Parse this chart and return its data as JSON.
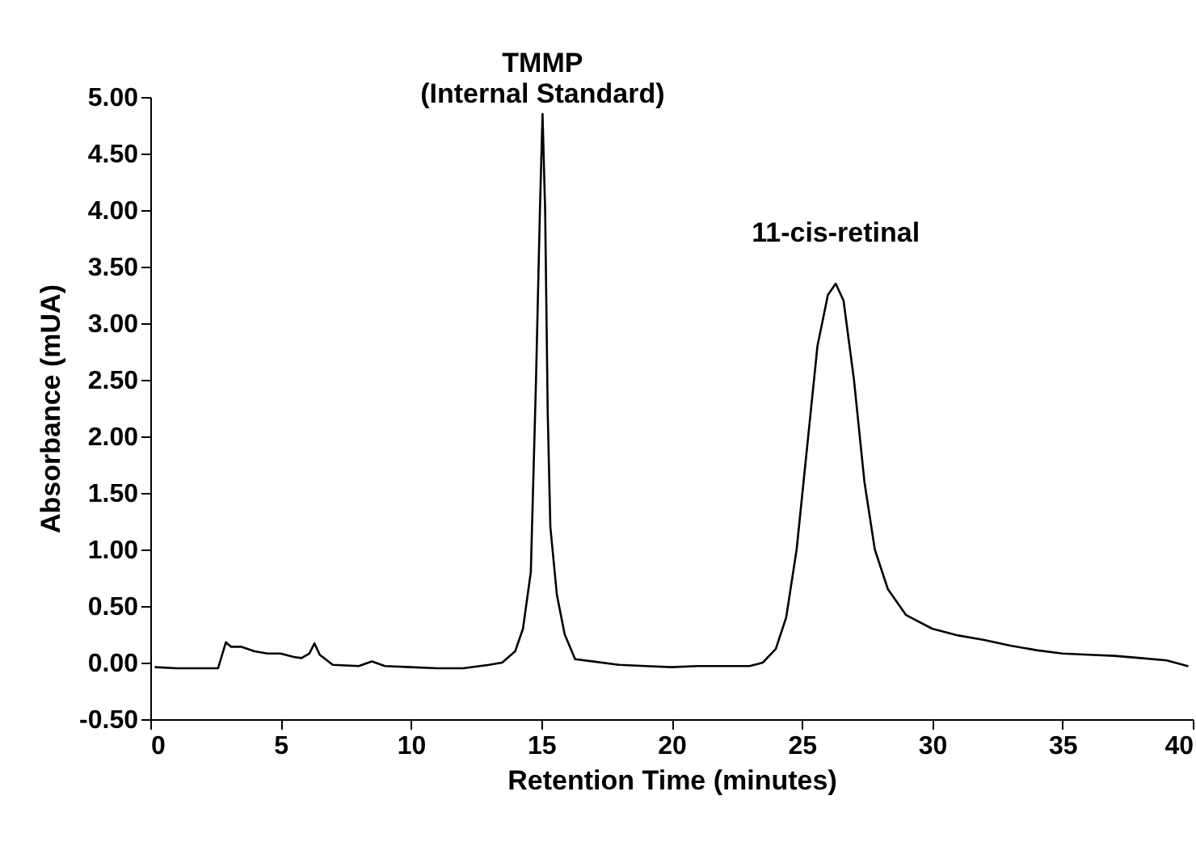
{
  "chart_data": {
    "type": "line",
    "xlabel": "Retention Time (minutes)",
    "ylabel": "Absorbance (mUA)",
    "xlim": [
      0,
      40
    ],
    "xticks": [
      0,
      5,
      10,
      15,
      20,
      25,
      30,
      35,
      40
    ],
    "ylim": [
      -0.5,
      5.0
    ],
    "yticks": [
      {
        "value": -0.5,
        "label": "-0.50"
      },
      {
        "value": 0,
        "label": "0.00"
      },
      {
        "value": 0.5,
        "label": "0.50"
      },
      {
        "value": 1.0,
        "label": "1.00"
      },
      {
        "value": 1.5,
        "label": "1.50"
      },
      {
        "value": 2.0,
        "label": "2.00"
      },
      {
        "value": 2.5,
        "label": "2.50"
      },
      {
        "value": 3.0,
        "label": "3.00"
      },
      {
        "value": 3.5,
        "label": "3.50"
      },
      {
        "value": 4.0,
        "label": "4.00"
      },
      {
        "value": 4.5,
        "label": "4.50"
      },
      {
        "value": 5.0,
        "label": "5.00"
      }
    ],
    "grid": false,
    "line_style": "solid",
    "marker": "none",
    "annotations": [
      {
        "text": "TMMP\n(Internal Standard)",
        "x": 15.05,
        "y": 4.85
      },
      {
        "text": "11-cis-retinal",
        "x": 26.3,
        "y": 3.35
      }
    ],
    "series": [
      {
        "color": "#000000",
        "x": [
          0.2,
          1,
          2,
          2.6,
          2.9,
          3.1,
          3.5,
          4.0,
          4.5,
          5.0,
          5.5,
          5.8,
          6.1,
          6.3,
          6.5,
          7.0,
          8.0,
          8.5,
          9.0,
          10.0,
          11.0,
          12.0,
          13.0,
          13.5,
          14.0,
          14.3,
          14.6,
          14.8,
          14.95,
          15.05,
          15.15,
          15.25,
          15.35,
          15.6,
          15.9,
          16.3,
          17.0,
          18.0,
          19.0,
          20.0,
          21.0,
          22.0,
          23.0,
          23.5,
          24.0,
          24.4,
          24.8,
          25.2,
          25.6,
          26.0,
          26.3,
          26.6,
          27.0,
          27.4,
          27.8,
          28.3,
          29.0,
          30.0,
          31.0,
          32.0,
          33.0,
          34.0,
          35.0,
          36.0,
          37.0,
          38.0,
          39.0,
          39.8
        ],
        "values": [
          -0.04,
          -0.05,
          -0.05,
          -0.05,
          0.18,
          0.14,
          0.14,
          0.1,
          0.08,
          0.08,
          0.05,
          0.04,
          0.08,
          0.17,
          0.07,
          -0.02,
          -0.03,
          0.01,
          -0.03,
          -0.04,
          -0.05,
          -0.05,
          -0.02,
          0.0,
          0.1,
          0.3,
          0.8,
          2.5,
          4.0,
          4.85,
          4.0,
          2.2,
          1.2,
          0.6,
          0.25,
          0.03,
          0.01,
          -0.02,
          -0.03,
          -0.04,
          -0.03,
          -0.03,
          -0.03,
          0.0,
          0.12,
          0.4,
          1.0,
          1.9,
          2.8,
          3.25,
          3.35,
          3.2,
          2.5,
          1.6,
          1.0,
          0.65,
          0.42,
          0.3,
          0.24,
          0.2,
          0.15,
          0.11,
          0.08,
          0.07,
          0.06,
          0.04,
          0.02,
          -0.03
        ]
      }
    ]
  }
}
